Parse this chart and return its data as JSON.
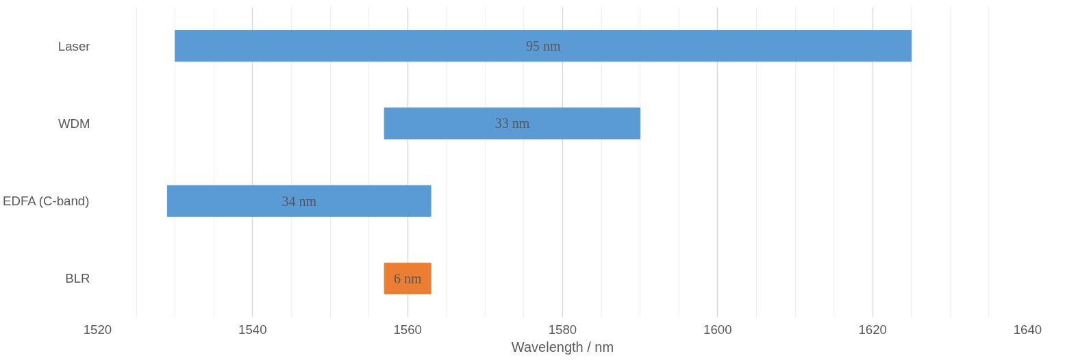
{
  "chart_data": {
    "type": "bar",
    "orientation": "horizontal",
    "xlabel": "Wavelength / nm",
    "categories": [
      "Laser",
      "WDM",
      "EDFA (C-band)",
      "BLR"
    ],
    "base": [
      1530,
      1557,
      1529,
      1557
    ],
    "values": [
      95,
      33,
      34,
      6
    ],
    "colors": [
      "#5b9bd5",
      "#5b9bd5",
      "#5b9bd5",
      "#ed7d31"
    ],
    "value_labels": [
      "95 nm",
      "33 nm",
      "34 nm",
      "6 nm"
    ],
    "xlim": [
      1520,
      1640
    ],
    "xticks": [
      1520,
      1540,
      1560,
      1580,
      1600,
      1620,
      1640
    ],
    "grid": "x"
  }
}
